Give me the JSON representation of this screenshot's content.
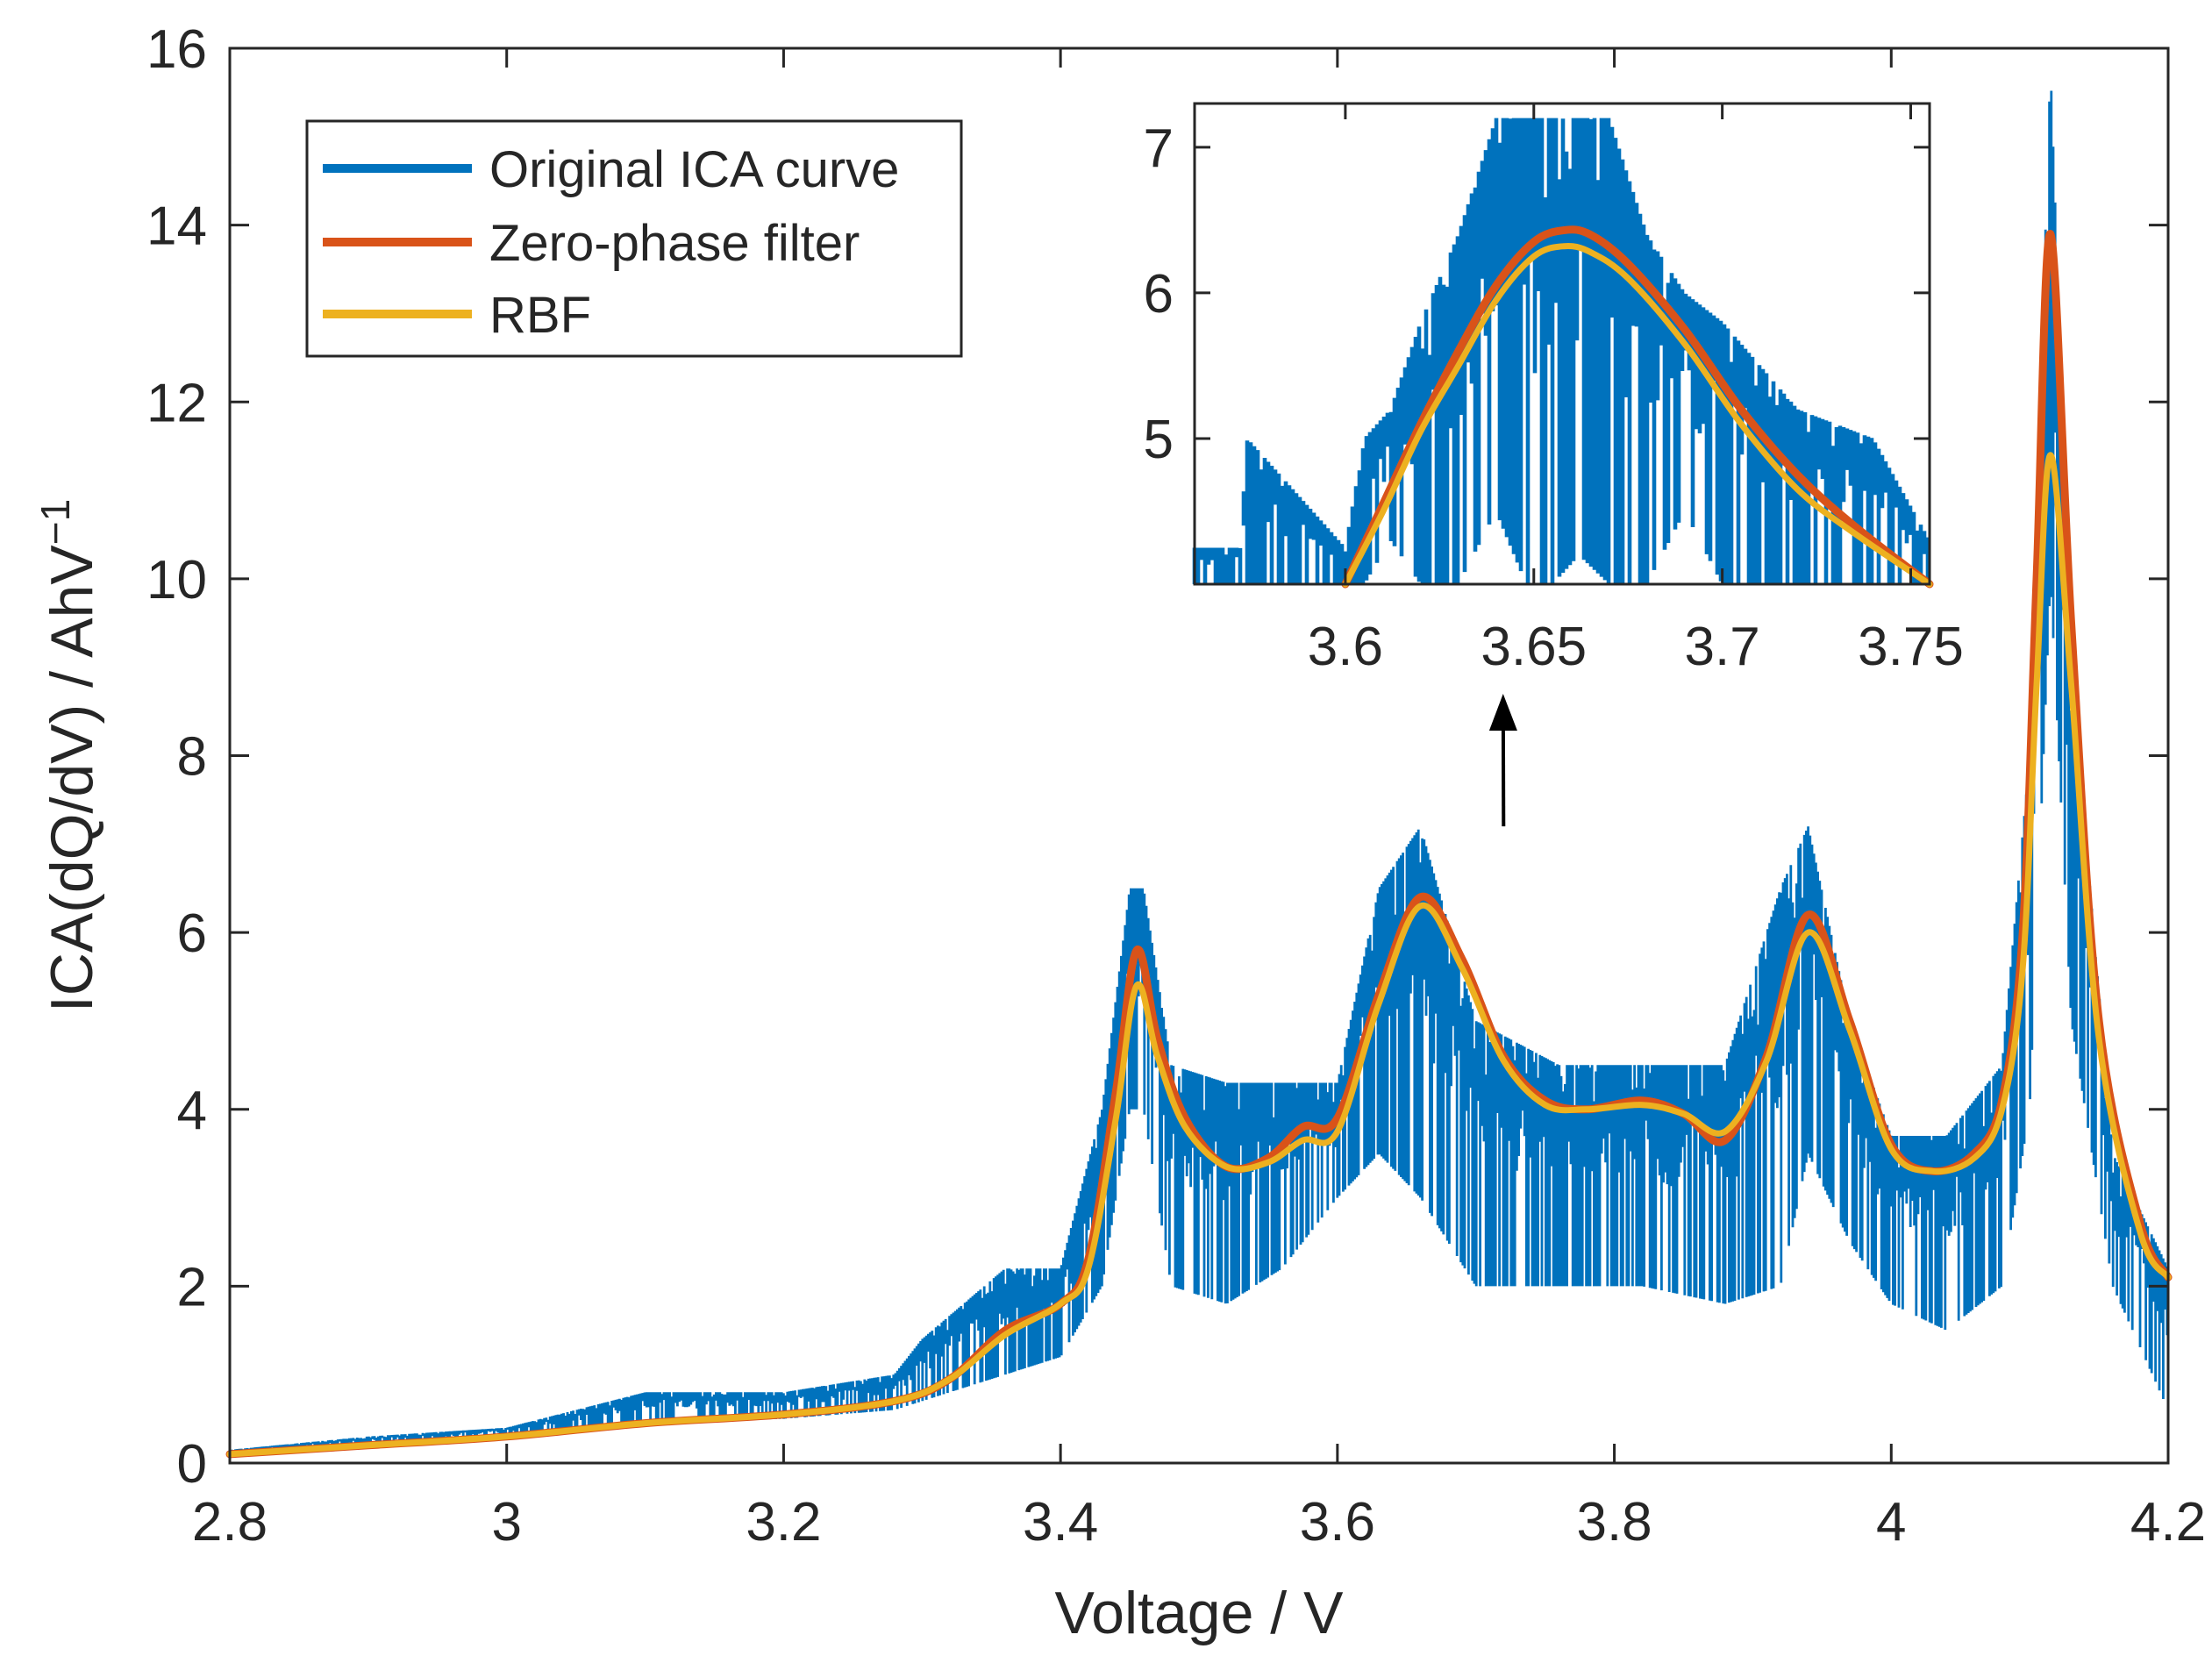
{
  "chart_data": [
    {
      "id": "main",
      "type": "line",
      "title": "",
      "xlabel": "Voltage / V",
      "ylabel_base": "ICA(dQ/dV) / AhV",
      "ylabel_sup": "−1",
      "xlim": [
        2.8,
        4.2
      ],
      "ylim": [
        0,
        16
      ],
      "grid": false,
      "x_ticks": [
        2.8,
        3.0,
        3.2,
        3.4,
        3.6,
        3.8,
        4.0,
        4.2
      ],
      "x_tick_labels": [
        "2.8",
        "3",
        "3.2",
        "3.4",
        "3.6",
        "3.8",
        "4",
        "4.2"
      ],
      "y_ticks": [
        0,
        2,
        4,
        6,
        8,
        10,
        12,
        14,
        16
      ],
      "y_tick_labels": [
        "0",
        "2",
        "4",
        "6",
        "8",
        "10",
        "12",
        "14",
        "16"
      ],
      "legend": {
        "placement": "top-left",
        "entries": [
          {
            "label": "Original ICA curve",
            "color": "#0072BD"
          },
          {
            "label": "Zero-phase filter",
            "color": "#D95319"
          },
          {
            "label": "RBF",
            "color": "#EDB120"
          }
        ]
      },
      "series": [
        {
          "name": "Original ICA curve",
          "color": "#0072BD",
          "kind": "noisy-band",
          "x": [
            2.8,
            2.9,
            3.0,
            3.1,
            3.2,
            3.28,
            3.3,
            3.36,
            3.4,
            3.43,
            3.45,
            3.46,
            3.48,
            3.52,
            3.56,
            3.6,
            3.63,
            3.66,
            3.7,
            3.76,
            3.82,
            3.88,
            3.92,
            3.94,
            3.97,
            4.0,
            4.04,
            4.08,
            4.1,
            4.115,
            4.13,
            4.16,
            4.2
          ],
          "lower": [
            0.1,
            0.2,
            0.3,
            0.45,
            0.5,
            0.6,
            0.7,
            1.0,
            1.2,
            2.0,
            4.0,
            4.0,
            2.0,
            1.8,
            2.2,
            3.0,
            3.5,
            3.0,
            2.0,
            2.0,
            2.0,
            1.8,
            2.0,
            3.5,
            2.5,
            1.8,
            1.5,
            2.0,
            4.0,
            10.0,
            5.0,
            2.0,
            0.6
          ],
          "upper": [
            0.15,
            0.3,
            0.4,
            0.8,
            0.8,
            1.0,
            1.4,
            2.2,
            2.2,
            4.0,
            6.5,
            6.5,
            4.5,
            4.3,
            4.3,
            4.3,
            6.5,
            7.2,
            5.0,
            4.5,
            4.5,
            4.5,
            6.5,
            7.2,
            5.0,
            3.7,
            3.7,
            4.5,
            8.0,
            15.8,
            9.0,
            3.5,
            2.2
          ]
        },
        {
          "name": "Zero-phase filter",
          "color": "#D95319",
          "kind": "line",
          "x": [
            2.8,
            2.9,
            3.0,
            3.1,
            3.2,
            3.28,
            3.32,
            3.36,
            3.4,
            3.42,
            3.44,
            3.455,
            3.47,
            3.49,
            3.52,
            3.55,
            3.575,
            3.6,
            3.63,
            3.66,
            3.69,
            3.72,
            3.75,
            3.78,
            3.82,
            3.85,
            3.88,
            3.91,
            3.94,
            3.97,
            4.0,
            4.03,
            4.06,
            4.08,
            4.095,
            4.105,
            4.115,
            4.13,
            4.15,
            4.18,
            4.2
          ],
          "y": [
            0.1,
            0.2,
            0.3,
            0.45,
            0.55,
            0.7,
            0.95,
            1.5,
            1.8,
            2.3,
            4.2,
            5.8,
            4.8,
            3.9,
            3.35,
            3.45,
            3.8,
            3.9,
            5.3,
            6.4,
            5.7,
            4.6,
            4.1,
            4.0,
            4.1,
            3.95,
            3.65,
            4.6,
            6.2,
            5.0,
            3.6,
            3.3,
            3.5,
            4.1,
            6.0,
            10.0,
            13.9,
            9.5,
            5.0,
            2.7,
            2.1
          ]
        },
        {
          "name": "RBF",
          "color": "#EDB120",
          "kind": "line",
          "x": [
            2.8,
            2.9,
            3.0,
            3.1,
            3.2,
            3.28,
            3.32,
            3.36,
            3.4,
            3.42,
            3.44,
            3.455,
            3.47,
            3.49,
            3.52,
            3.55,
            3.575,
            3.6,
            3.63,
            3.66,
            3.69,
            3.72,
            3.75,
            3.78,
            3.82,
            3.85,
            3.88,
            3.91,
            3.94,
            3.97,
            4.0,
            4.03,
            4.06,
            4.08,
            4.095,
            4.105,
            4.115,
            4.13,
            4.15,
            4.18,
            4.2
          ],
          "y": [
            0.1,
            0.2,
            0.3,
            0.45,
            0.55,
            0.7,
            0.95,
            1.45,
            1.8,
            2.2,
            3.9,
            5.4,
            4.6,
            3.8,
            3.35,
            3.4,
            3.65,
            3.75,
            5.2,
            6.3,
            5.6,
            4.55,
            4.05,
            4.0,
            4.05,
            3.95,
            3.75,
            4.55,
            6.0,
            4.9,
            3.55,
            3.3,
            3.45,
            4.0,
            5.6,
            8.8,
            11.4,
            8.8,
            4.8,
            2.6,
            2.1
          ]
        }
      ],
      "annotation": {
        "type": "arrow",
        "from": [
          3.72,
          7.2
        ],
        "to_inset_label": "3.65"
      }
    },
    {
      "id": "inset",
      "type": "line",
      "title": "",
      "xlabel": "",
      "ylabel": "",
      "xlim": [
        3.56,
        3.755
      ],
      "ylim": [
        4.0,
        7.3
      ],
      "grid": false,
      "x_ticks": [
        3.6,
        3.65,
        3.7,
        3.75
      ],
      "x_tick_labels": [
        "3.6",
        "3.65",
        "3.7",
        "3.75"
      ],
      "y_ticks": [
        5,
        6,
        7
      ],
      "y_tick_labels": [
        "5",
        "6",
        "7"
      ],
      "series": [
        {
          "name": "Original ICA curve",
          "color": "#0072BD",
          "kind": "noisy-band",
          "x": [
            3.56,
            3.572,
            3.574,
            3.6,
            3.605,
            3.612,
            3.62,
            3.63,
            3.64,
            3.648,
            3.655,
            3.662,
            3.67,
            3.68,
            3.69,
            3.7,
            3.72,
            3.74,
            3.755
          ],
          "lower": [
            4.0,
            4.0,
            4.0,
            4.0,
            4.0,
            4.3,
            4.0,
            4.0,
            4.5,
            4.0,
            4.0,
            4.2,
            4.0,
            4.0,
            4.5,
            4.0,
            4.0,
            4.0,
            4.0
          ],
          "upper": [
            4.25,
            4.25,
            5.0,
            4.25,
            5.0,
            5.2,
            5.8,
            6.4,
            7.2,
            7.2,
            7.2,
            7.2,
            7.2,
            6.4,
            6.0,
            5.8,
            5.2,
            5.0,
            4.3
          ]
        },
        {
          "name": "Zero-phase filter",
          "color": "#D95319",
          "kind": "line",
          "x": [
            3.6,
            3.61,
            3.62,
            3.63,
            3.64,
            3.65,
            3.658,
            3.665,
            3.675,
            3.69,
            3.705,
            3.72,
            3.735,
            3.755
          ],
          "y": [
            4.0,
            4.55,
            5.1,
            5.6,
            6.05,
            6.35,
            6.43,
            6.4,
            6.2,
            5.75,
            5.2,
            4.75,
            4.4,
            4.0
          ]
        },
        {
          "name": "RBF",
          "color": "#EDB120",
          "kind": "line",
          "x": [
            3.6,
            3.61,
            3.62,
            3.63,
            3.64,
            3.65,
            3.658,
            3.665,
            3.675,
            3.69,
            3.705,
            3.72,
            3.735,
            3.755
          ],
          "y": [
            4.0,
            4.5,
            5.05,
            5.5,
            5.95,
            6.25,
            6.32,
            6.28,
            6.1,
            5.65,
            5.1,
            4.65,
            4.35,
            4.0
          ]
        }
      ]
    }
  ]
}
